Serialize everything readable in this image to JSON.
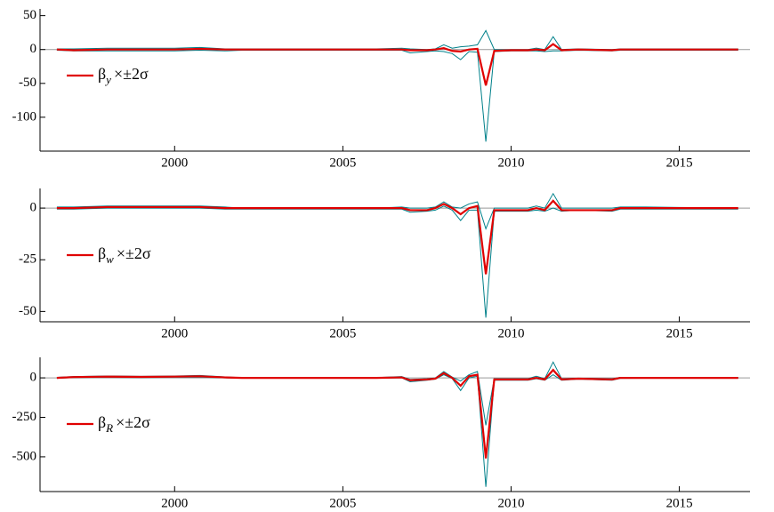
{
  "chart_data": [
    {
      "type": "line",
      "x": [
        1996.5,
        1997,
        1998,
        1999,
        2000,
        2000.75,
        2001.5,
        2002,
        2004,
        2006,
        2006.75,
        2007,
        2007.5,
        2007.75,
        2008,
        2008.25,
        2008.5,
        2008.75,
        2009,
        2009.25,
        2009.5,
        2010,
        2010.5,
        2010.75,
        2011,
        2011.25,
        2011.5,
        2012,
        2013,
        2013.25,
        2014,
        2016.75
      ],
      "series": [
        {
          "color": "#00808a",
          "values": [
            1,
            1,
            2,
            2,
            2,
            3,
            1,
            1,
            1,
            1,
            2,
            1,
            0,
            1,
            7,
            2,
            4,
            5,
            7,
            28,
            0,
            0,
            0,
            2,
            0,
            19,
            0,
            1,
            0,
            1,
            1,
            1
          ]
        },
        {
          "color": "#00808a",
          "values": [
            -1,
            -2,
            -2,
            -2,
            -2,
            -1,
            -2,
            -1,
            -1,
            -1,
            -1,
            -5,
            -3,
            -2,
            -3,
            -6,
            -15,
            -3,
            -4,
            -136,
            -3,
            -2,
            -2,
            -2,
            -3,
            -2,
            -2,
            -1,
            -2,
            -1,
            -1,
            -1
          ]
        },
        {
          "color": "#e00000",
          "values": [
            0,
            -1,
            0,
            0,
            0,
            1,
            0,
            0,
            0,
            0,
            0,
            -1,
            -1,
            0,
            2,
            -2,
            -3,
            0,
            1,
            -53,
            -2,
            -1,
            -1,
            0,
            -1,
            8,
            -1,
            0,
            -1,
            0,
            0,
            0
          ]
        }
      ],
      "legend_label": {
        "symbol": "β",
        "subscript": "y",
        "rest": "×±2σ"
      },
      "xlim": [
        1996,
        2017.1
      ],
      "xticks": [
        2000,
        2005,
        2010,
        2015
      ],
      "ylim": [
        -150,
        60
      ],
      "yticks": [
        50,
        0,
        -50,
        -100
      ],
      "zero_line": true
    },
    {
      "type": "line",
      "x": [
        1996.5,
        1997,
        1998,
        1999,
        2000,
        2000.75,
        2001.5,
        2002,
        2004,
        2006,
        2006.75,
        2007,
        2007.5,
        2007.75,
        2008,
        2008.25,
        2008.5,
        2008.75,
        2009,
        2009.25,
        2009.5,
        2010,
        2010.5,
        2010.75,
        2011,
        2011.25,
        2011.5,
        2012,
        2013,
        2013.25,
        2014,
        2016.75
      ],
      "series": [
        {
          "color": "#00808a",
          "values": [
            0.5,
            0.5,
            1,
            1,
            1,
            1,
            0.5,
            0,
            0,
            0,
            0.5,
            0,
            0,
            0.5,
            3,
            0.5,
            0,
            2,
            3,
            -10,
            0,
            0,
            0,
            1,
            0,
            7,
            0,
            0,
            0,
            0.5,
            0.5,
            0
          ]
        },
        {
          "color": "#00808a",
          "values": [
            -0.5,
            -0.5,
            0,
            0,
            0,
            0,
            -0.5,
            -0.5,
            -0.5,
            -0.5,
            -0.5,
            -2,
            -1.5,
            -1,
            1,
            -1,
            -6,
            -1,
            -1,
            -53,
            -1.5,
            -1.5,
            -1.5,
            -1,
            -1.5,
            0,
            -1.5,
            -1,
            -1.5,
            -0.5,
            -0.5,
            -0.5
          ]
        },
        {
          "color": "#e00000",
          "values": [
            0,
            0,
            0.5,
            0.5,
            0.5,
            0.5,
            0,
            0,
            0,
            0,
            0,
            -1,
            -1,
            0,
            2,
            0,
            -3,
            0,
            1,
            -32,
            -1,
            -1,
            -1,
            0,
            -1,
            3.5,
            -1,
            -1,
            -1,
            0,
            0,
            0
          ]
        }
      ],
      "legend_label": {
        "symbol": "β",
        "subscript": "w",
        "rest": "×±2σ"
      },
      "xlim": [
        1996,
        2017.1
      ],
      "xticks": [
        2000,
        2005,
        2010,
        2015
      ],
      "ylim": [
        -55,
        9.5
      ],
      "yticks": [
        0,
        -25,
        -50
      ],
      "zero_line": true
    },
    {
      "type": "line",
      "x": [
        1996.5,
        1997,
        1998,
        1999,
        2000,
        2000.75,
        2001.5,
        2002,
        2004,
        2006,
        2006.75,
        2007,
        2007.5,
        2007.75,
        2008,
        2008.25,
        2008.5,
        2008.75,
        2009,
        2009.25,
        2009.5,
        2010,
        2010.5,
        2010.75,
        2011,
        2011.25,
        2011.5,
        2012,
        2013,
        2013.25,
        2014,
        2016.75
      ],
      "series": [
        {
          "color": "#00808a",
          "values": [
            3,
            8,
            12,
            10,
            12,
            15,
            6,
            2,
            2,
            2,
            8,
            -10,
            -5,
            0,
            40,
            5,
            -20,
            20,
            40,
            -300,
            -5,
            -5,
            -5,
            10,
            -5,
            100,
            -5,
            -2,
            -5,
            3,
            2,
            2
          ]
        },
        {
          "color": "#00808a",
          "values": [
            -3,
            2,
            4,
            2,
            4,
            5,
            0,
            -2,
            -2,
            -2,
            0,
            -25,
            -15,
            -8,
            20,
            -5,
            -80,
            0,
            10,
            -690,
            -15,
            -15,
            -15,
            -5,
            -15,
            20,
            -15,
            -8,
            -15,
            -3,
            -2,
            -2
          ]
        },
        {
          "color": "#e00000",
          "values": [
            0,
            5,
            8,
            6,
            8,
            10,
            3,
            0,
            0,
            0,
            3,
            -15,
            -10,
            -5,
            30,
            0,
            -50,
            10,
            20,
            -510,
            -10,
            -10,
            -10,
            0,
            -10,
            50,
            -10,
            -5,
            -10,
            0,
            0,
            0
          ]
        }
      ],
      "legend_label": {
        "symbol": "β",
        "subscript": "R",
        "rest": "×±2σ"
      },
      "xlim": [
        1996,
        2017.1
      ],
      "xticks": [
        2000,
        2005,
        2010,
        2015
      ],
      "ylim": [
        -720,
        130
      ],
      "yticks": [
        0,
        -250,
        -500
      ],
      "zero_line": true
    }
  ]
}
